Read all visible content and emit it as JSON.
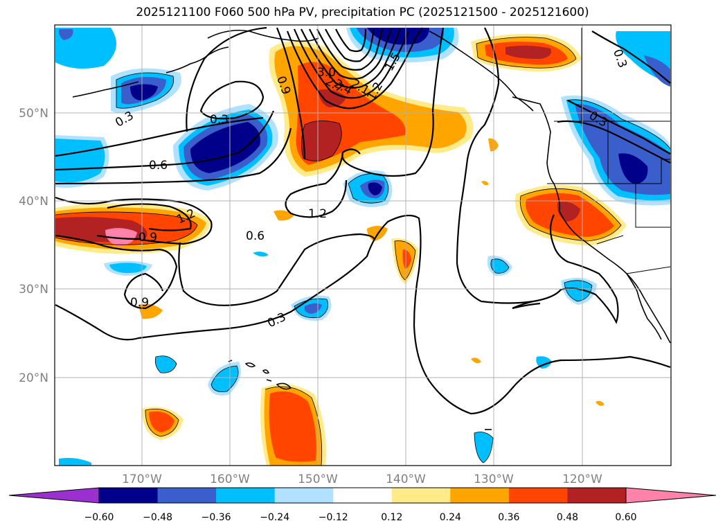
{
  "title": "2025121100 F060 500 hPa PV, precipitation PC (2025121500 - 2025121600)",
  "axes": {
    "latitudes": [
      "50°N",
      "40°N",
      "30°N",
      "20°N"
    ],
    "longitudes": [
      "170°W",
      "160°W",
      "150°W",
      "140°W",
      "130°W",
      "120°W"
    ]
  },
  "colorbar": {
    "colors": [
      "#9b30d0",
      "#00008b",
      "#3a5fcd",
      "#00bfff",
      "#b0e2ff",
      "#ffffff",
      "#ffeb8a",
      "#ffa500",
      "#ff4500",
      "#b22222",
      "#ff82ab"
    ],
    "labels": [
      "−0.60",
      "−0.48",
      "−0.36",
      "−0.24",
      "−0.12",
      "0.12",
      "0.24",
      "0.36",
      "0.48",
      "0.60"
    ]
  },
  "contour_labels": [
    "0.3",
    "0.6",
    "0.9",
    "1.2",
    "1.5",
    "2.1",
    "2.4",
    "2.7",
    "3.0",
    "0.3",
    "0.3",
    "0.9",
    "1.2",
    "0.6",
    "1.2",
    "0.9",
    "0.3",
    "0.9",
    "0.3"
  ]
}
